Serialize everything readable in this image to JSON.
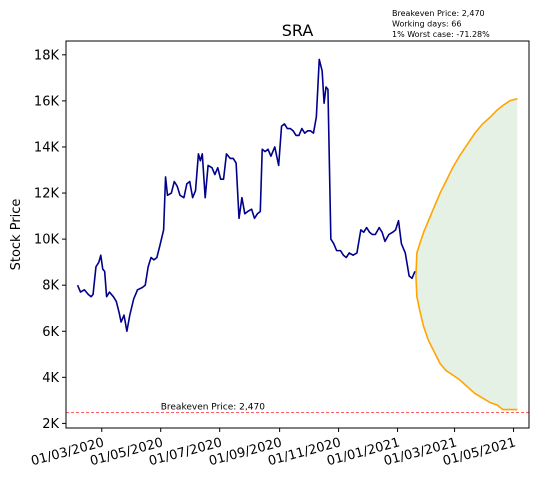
{
  "chart_data": {
    "type": "line",
    "title": "SRA",
    "xlabel": "",
    "ylabel": "Stock Price",
    "ylim": [
      1800,
      18600
    ],
    "xlim": [
      "2020-01-24",
      "2021-05-17"
    ],
    "grid": false,
    "y_ticks": [
      {
        "value": 2000,
        "label": "2K"
      },
      {
        "value": 4000,
        "label": "4K"
      },
      {
        "value": 6000,
        "label": "6K"
      },
      {
        "value": 8000,
        "label": "8K"
      },
      {
        "value": 10000,
        "label": "10K"
      },
      {
        "value": 12000,
        "label": "12K"
      },
      {
        "value": 14000,
        "label": "14K"
      },
      {
        "value": 16000,
        "label": "16K"
      },
      {
        "value": 18000,
        "label": "18K"
      }
    ],
    "x_ticks": [
      {
        "date": "2020-03-01",
        "label": "01/03/2020"
      },
      {
        "date": "2020-05-01",
        "label": "01/05/2020"
      },
      {
        "date": "2020-07-01",
        "label": "01/07/2020"
      },
      {
        "date": "2020-09-01",
        "label": "01/09/2020"
      },
      {
        "date": "2020-11-01",
        "label": "01/11/2020"
      },
      {
        "date": "2021-01-01",
        "label": "01/01/2021"
      },
      {
        "date": "2021-03-01",
        "label": "01/03/2021"
      },
      {
        "date": "2021-05-01",
        "label": "01/05/2021"
      }
    ],
    "info_box": [
      "Breakeven Price: 2,470",
      "Working days: 66",
      "1% Worst case: -71.28%"
    ],
    "breakeven": {
      "value": 2470,
      "label": "Breakeven Price: 2,470",
      "label_date": "2020-05-01",
      "color": "#ff0000"
    },
    "price_series": {
      "color": "#00008b",
      "points": [
        [
          "2020-02-05",
          8000
        ],
        [
          "2020-02-08",
          7700
        ],
        [
          "2020-02-12",
          7800
        ],
        [
          "2020-02-16",
          7600
        ],
        [
          "2020-02-19",
          7500
        ],
        [
          "2020-02-21",
          7600
        ],
        [
          "2020-02-24",
          8800
        ],
        [
          "2020-02-27",
          9000
        ],
        [
          "2020-02-29",
          9300
        ],
        [
          "2020-03-02",
          8700
        ],
        [
          "2020-03-04",
          8600
        ],
        [
          "2020-03-06",
          7500
        ],
        [
          "2020-03-09",
          7700
        ],
        [
          "2020-03-13",
          7500
        ],
        [
          "2020-03-16",
          7300
        ],
        [
          "2020-03-19",
          6800
        ],
        [
          "2020-03-21",
          6400
        ],
        [
          "2020-03-24",
          6700
        ],
        [
          "2020-03-27",
          6000
        ],
        [
          "2020-03-30",
          6700
        ],
        [
          "2020-04-03",
          7400
        ],
        [
          "2020-04-07",
          7800
        ],
        [
          "2020-04-12",
          7900
        ],
        [
          "2020-04-15",
          8000
        ],
        [
          "2020-04-18",
          8800
        ],
        [
          "2020-04-21",
          9200
        ],
        [
          "2020-04-24",
          9100
        ],
        [
          "2020-04-27",
          9200
        ],
        [
          "2020-04-30",
          9700
        ],
        [
          "2020-05-04",
          10400
        ],
        [
          "2020-05-06",
          12700
        ],
        [
          "2020-05-08",
          11900
        ],
        [
          "2020-05-12",
          12000
        ],
        [
          "2020-05-15",
          12500
        ],
        [
          "2020-05-18",
          12300
        ],
        [
          "2020-05-21",
          11900
        ],
        [
          "2020-05-25",
          11800
        ],
        [
          "2020-05-28",
          12400
        ],
        [
          "2020-05-31",
          12500
        ],
        [
          "2020-06-03",
          11800
        ],
        [
          "2020-06-06",
          12100
        ],
        [
          "2020-06-09",
          13700
        ],
        [
          "2020-06-11",
          13400
        ],
        [
          "2020-06-13",
          13700
        ],
        [
          "2020-06-16",
          11800
        ],
        [
          "2020-06-19",
          13200
        ],
        [
          "2020-06-23",
          13100
        ],
        [
          "2020-06-26",
          12800
        ],
        [
          "2020-06-29",
          13100
        ],
        [
          "2020-07-02",
          12600
        ],
        [
          "2020-07-05",
          12600
        ],
        [
          "2020-07-08",
          13700
        ],
        [
          "2020-07-12",
          13500
        ],
        [
          "2020-07-15",
          13500
        ],
        [
          "2020-07-18",
          13300
        ],
        [
          "2020-07-21",
          10900
        ],
        [
          "2020-07-24",
          11800
        ],
        [
          "2020-07-27",
          11100
        ],
        [
          "2020-07-30",
          11200
        ],
        [
          "2020-08-03",
          11300
        ],
        [
          "2020-08-06",
          10900
        ],
        [
          "2020-08-09",
          11100
        ],
        [
          "2020-08-12",
          11200
        ],
        [
          "2020-08-14",
          13900
        ],
        [
          "2020-08-17",
          13800
        ],
        [
          "2020-08-20",
          13900
        ],
        [
          "2020-08-23",
          13600
        ],
        [
          "2020-08-27",
          14000
        ],
        [
          "2020-08-31",
          13200
        ],
        [
          "2020-09-03",
          14900
        ],
        [
          "2020-09-06",
          15000
        ],
        [
          "2020-09-09",
          14800
        ],
        [
          "2020-09-12",
          14800
        ],
        [
          "2020-09-15",
          14700
        ],
        [
          "2020-09-18",
          14500
        ],
        [
          "2020-09-21",
          14500
        ],
        [
          "2020-09-24",
          14800
        ],
        [
          "2020-09-27",
          14600
        ],
        [
          "2020-09-30",
          14700
        ],
        [
          "2020-10-03",
          14700
        ],
        [
          "2020-10-06",
          14600
        ],
        [
          "2020-10-09",
          15300
        ],
        [
          "2020-10-12",
          17800
        ],
        [
          "2020-10-15",
          17300
        ],
        [
          "2020-10-17",
          15900
        ],
        [
          "2020-10-19",
          16600
        ],
        [
          "2020-10-21",
          16500
        ],
        [
          "2020-10-24",
          10000
        ],
        [
          "2020-10-27",
          9800
        ],
        [
          "2020-10-30",
          9500
        ],
        [
          "2020-11-03",
          9500
        ],
        [
          "2020-11-06",
          9300
        ],
        [
          "2020-11-09",
          9200
        ],
        [
          "2020-11-12",
          9400
        ],
        [
          "2020-11-16",
          9300
        ],
        [
          "2020-11-20",
          9400
        ],
        [
          "2020-11-24",
          10400
        ],
        [
          "2020-11-27",
          10300
        ],
        [
          "2020-11-30",
          10500
        ],
        [
          "2020-12-03",
          10300
        ],
        [
          "2020-12-06",
          10200
        ],
        [
          "2020-12-09",
          10200
        ],
        [
          "2020-12-13",
          10500
        ],
        [
          "2020-12-16",
          10300
        ],
        [
          "2020-12-19",
          9900
        ],
        [
          "2020-12-23",
          10200
        ],
        [
          "2020-12-27",
          10300
        ],
        [
          "2020-12-30",
          10400
        ],
        [
          "2021-01-02",
          10800
        ],
        [
          "2021-01-05",
          9800
        ],
        [
          "2021-01-09",
          9400
        ],
        [
          "2021-01-13",
          8400
        ],
        [
          "2021-01-16",
          8300
        ],
        [
          "2021-01-19",
          8600
        ]
      ]
    },
    "forecast_band": {
      "color": "#ffa500",
      "fill_color": "#2e8b2e",
      "fill_opacity": 0.12,
      "start": [
        "2021-01-20",
        8400
      ],
      "upper": [
        [
          "2021-01-21",
          9400
        ],
        [
          "2021-01-24",
          9800
        ],
        [
          "2021-01-28",
          10300
        ],
        [
          "2021-02-02",
          10800
        ],
        [
          "2021-02-08",
          11400
        ],
        [
          "2021-02-14",
          12000
        ],
        [
          "2021-02-20",
          12500
        ],
        [
          "2021-02-27",
          13100
        ],
        [
          "2021-03-06",
          13600
        ],
        [
          "2021-03-14",
          14100
        ],
        [
          "2021-03-22",
          14600
        ],
        [
          "2021-03-30",
          15000
        ],
        [
          "2021-04-07",
          15300
        ],
        [
          "2021-04-14",
          15600
        ],
        [
          "2021-04-20",
          15800
        ],
        [
          "2021-04-27",
          16000
        ],
        [
          "2021-05-05",
          16100
        ]
      ],
      "lower": [
        [
          "2021-01-21",
          7500
        ],
        [
          "2021-01-24",
          6900
        ],
        [
          "2021-01-28",
          6200
        ],
        [
          "2021-02-02",
          5600
        ],
        [
          "2021-02-08",
          5100
        ],
        [
          "2021-02-14",
          4600
        ],
        [
          "2021-02-20",
          4300
        ],
        [
          "2021-02-27",
          4100
        ],
        [
          "2021-03-06",
          3900
        ],
        [
          "2021-03-14",
          3600
        ],
        [
          "2021-03-22",
          3300
        ],
        [
          "2021-03-30",
          3100
        ],
        [
          "2021-04-07",
          2900
        ],
        [
          "2021-04-14",
          2800
        ],
        [
          "2021-04-20",
          2600
        ],
        [
          "2021-04-27",
          2600
        ],
        [
          "2021-05-05",
          2600
        ]
      ]
    }
  }
}
